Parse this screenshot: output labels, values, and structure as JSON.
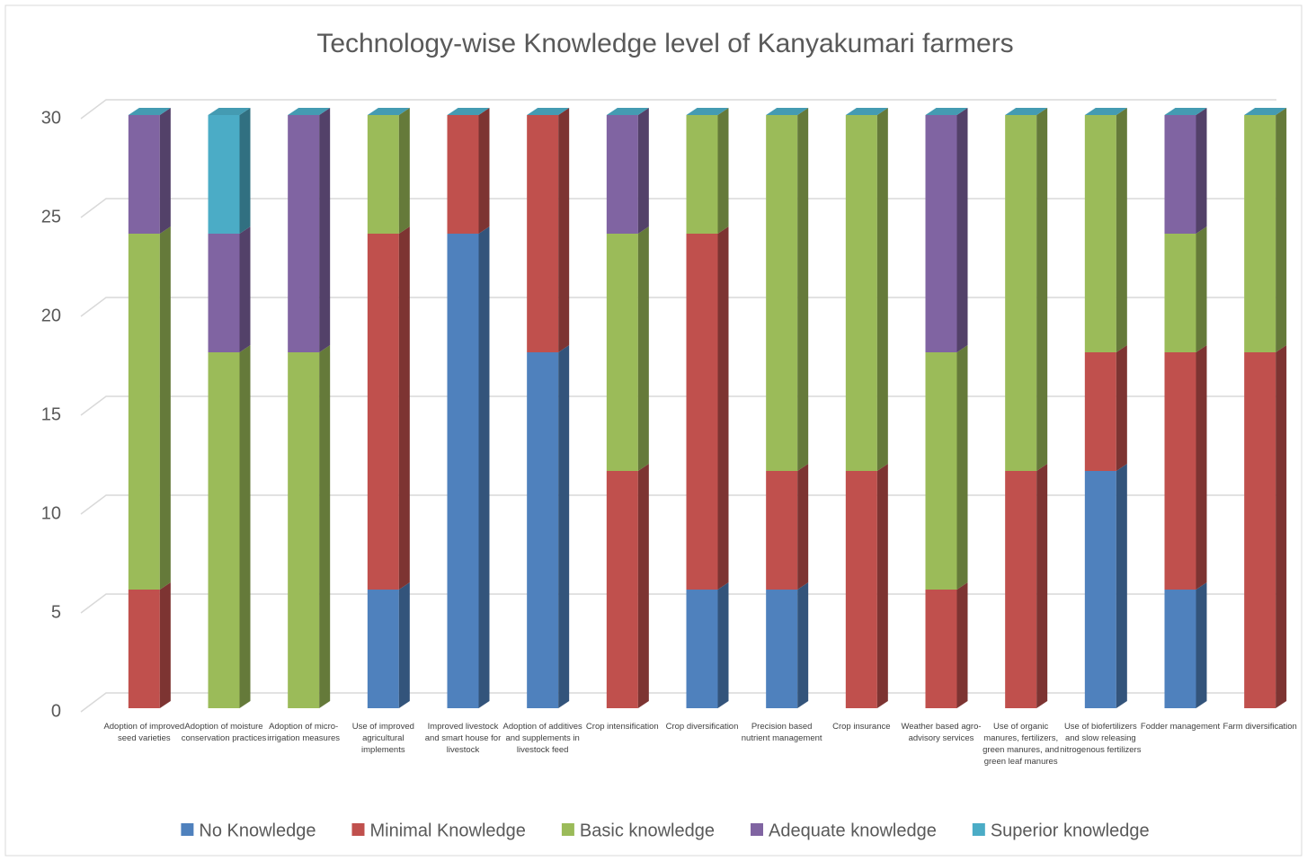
{
  "chart_data": {
    "type": "bar",
    "stacked": true,
    "title": "Technology-wise Knowledge level of Kanyakumari farmers",
    "categories": [
      "Adoption of improved seed varieties",
      "Adoption of moisture conservation practices",
      "Adoption of micro-irrigation measures",
      "Use of improved agricultural implements",
      "Improved livestock and smart house for livestock",
      "Adoption of additives and supplements in livestock feed",
      "Crop intensification",
      "Crop diversification",
      "Precision based nutrient management",
      "Crop insurance",
      "Weather based agro-advisory services",
      "Use of organic manures, fertilizers, green manures, and green leaf manures",
      "Use of biofertilizers and slow releasing nitrogenous fertilizers",
      "Fodder management",
      "Farm diversification"
    ],
    "series": [
      {
        "name": "No Knowledge",
        "color": "#4f81bd",
        "values": [
          0,
          0,
          0,
          6,
          24,
          18,
          0,
          6,
          6,
          0,
          0,
          0,
          12,
          6,
          0
        ]
      },
      {
        "name": "Minimal Knowledge",
        "color": "#c0504d",
        "values": [
          6,
          0,
          0,
          18,
          6,
          12,
          12,
          18,
          6,
          12,
          6,
          12,
          6,
          12,
          18
        ]
      },
      {
        "name": "Basic knowledge",
        "color": "#9bbb59",
        "values": [
          18,
          18,
          18,
          6,
          0,
          0,
          12,
          6,
          18,
          18,
          12,
          18,
          12,
          6,
          12
        ]
      },
      {
        "name": "Adequate knowledge",
        "color": "#8064a2",
        "values": [
          6,
          6,
          12,
          0,
          0,
          0,
          6,
          0,
          0,
          0,
          12,
          0,
          0,
          6,
          0
        ]
      },
      {
        "name": "Superior knowledge",
        "color": "#4bacc6",
        "values": [
          0,
          6,
          0,
          0,
          0,
          0,
          0,
          0,
          0,
          0,
          0,
          0,
          0,
          0,
          0
        ]
      }
    ],
    "ylim": [
      0,
      30
    ],
    "yticks": [
      0,
      5,
      10,
      15,
      20,
      25,
      30
    ],
    "grid": true,
    "legend": "bottom"
  }
}
